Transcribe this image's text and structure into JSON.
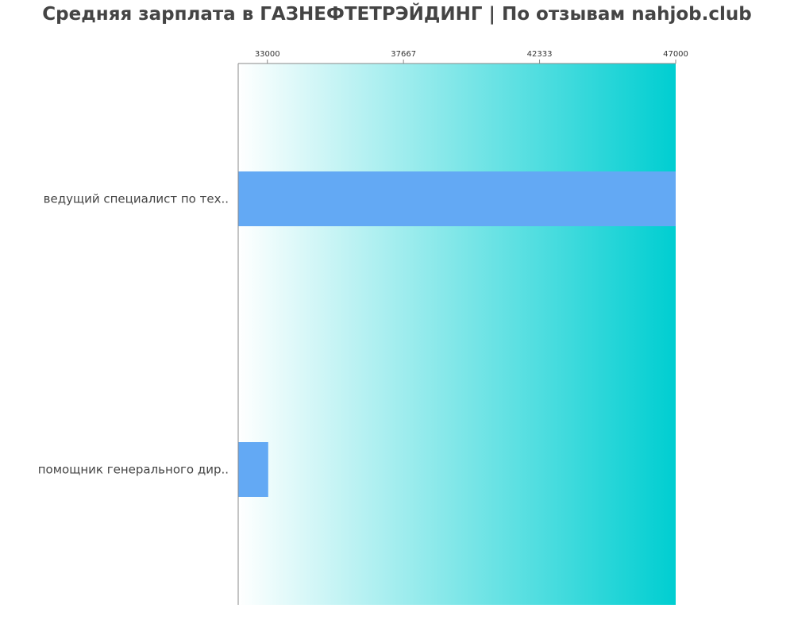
{
  "chart_data": {
    "type": "bar",
    "orientation": "horizontal",
    "title": "Средняя зарплата в ГАЗНЕФТЕТРЭЙДИНГ | По отзывам nahjob.club",
    "categories": [
      "ведущий специалист по тех..",
      "помощник генерального дир.."
    ],
    "values": [
      47000,
      33030
    ],
    "xlim": [
      32000,
      47000
    ],
    "xticks": [
      33000,
      37667,
      42333,
      47000
    ],
    "xtick_labels": [
      "33000",
      "37667",
      "42333",
      "47000"
    ],
    "axis_position": "top",
    "grid": false,
    "colors": {
      "bar": "#63a9f4",
      "background_gradient_start": "#ffffff",
      "background_gradient_end": "#00ced1",
      "axis": "#888888"
    }
  }
}
